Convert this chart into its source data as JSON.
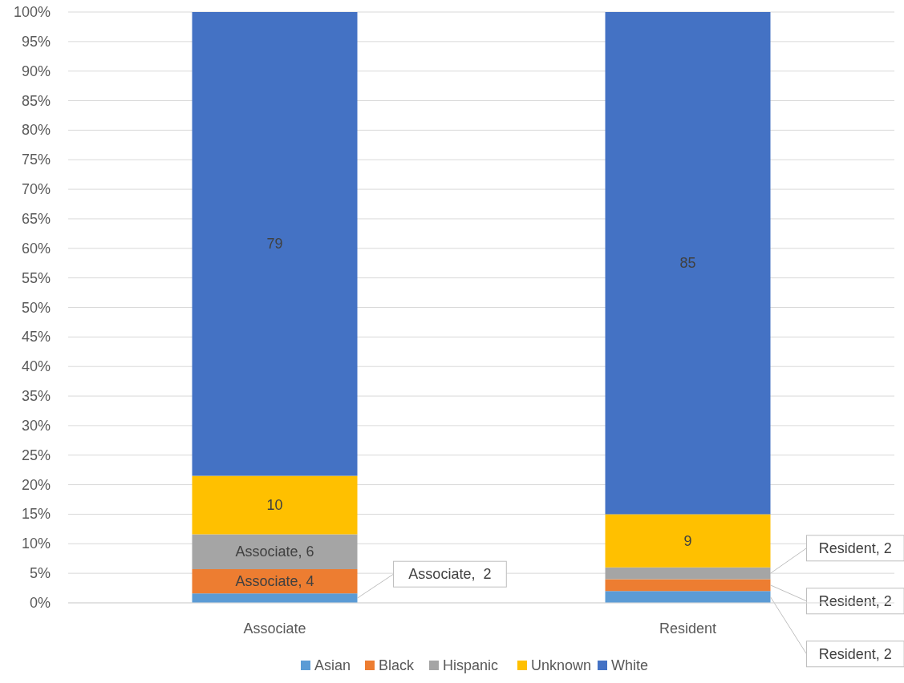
{
  "chart_data": {
    "type": "bar",
    "stacked": true,
    "categories": [
      "Associate",
      "Resident"
    ],
    "series": [
      {
        "name": "Asian",
        "color": "#5b9bd5",
        "values": [
          1.6,
          2
        ],
        "value_labels": [
          "Associate,  2",
          "Resident, 2"
        ]
      },
      {
        "name": "Black",
        "color": "#ed7d31",
        "values": [
          4.1,
          2
        ],
        "value_labels": [
          "Associate, 4",
          "Resident, 2"
        ]
      },
      {
        "name": "Hispanic",
        "color": "#a5a5a5",
        "values": [
          5.9,
          2
        ],
        "value_labels": [
          "Associate, 6",
          "Resident, 2"
        ]
      },
      {
        "name": "Unknown",
        "color": "#ffc000",
        "values": [
          9.9,
          9
        ],
        "value_labels": [
          "10",
          "9"
        ]
      },
      {
        "name": "White",
        "color": "#4472c4",
        "values": [
          78.5,
          85
        ],
        "value_labels": [
          "79",
          "85"
        ]
      }
    ],
    "ylim": [
      0,
      100
    ],
    "yticks": [
      {
        "value": 0,
        "label": "0%"
      },
      {
        "value": 5,
        "label": "5%"
      },
      {
        "value": 10,
        "label": "10%"
      },
      {
        "value": 15,
        "label": "15%"
      },
      {
        "value": 20,
        "label": "20%"
      },
      {
        "value": 25,
        "label": "25%"
      },
      {
        "value": 30,
        "label": "30%"
      },
      {
        "value": 35,
        "label": "35%"
      },
      {
        "value": 40,
        "label": "40%"
      },
      {
        "value": 45,
        "label": "45%"
      },
      {
        "value": 50,
        "label": "50%"
      },
      {
        "value": 55,
        "label": "55%"
      },
      {
        "value": 60,
        "label": "60%"
      },
      {
        "value": 65,
        "label": "65%"
      },
      {
        "value": 70,
        "label": "70%"
      },
      {
        "value": 75,
        "label": "75%"
      },
      {
        "value": 80,
        "label": "80%"
      },
      {
        "value": 85,
        "label": "85%"
      },
      {
        "value": 90,
        "label": "90%"
      },
      {
        "value": 95,
        "label": "95%"
      },
      {
        "value": 100,
        "label": "100%"
      }
    ],
    "grid": "y",
    "legend": "bottom"
  }
}
